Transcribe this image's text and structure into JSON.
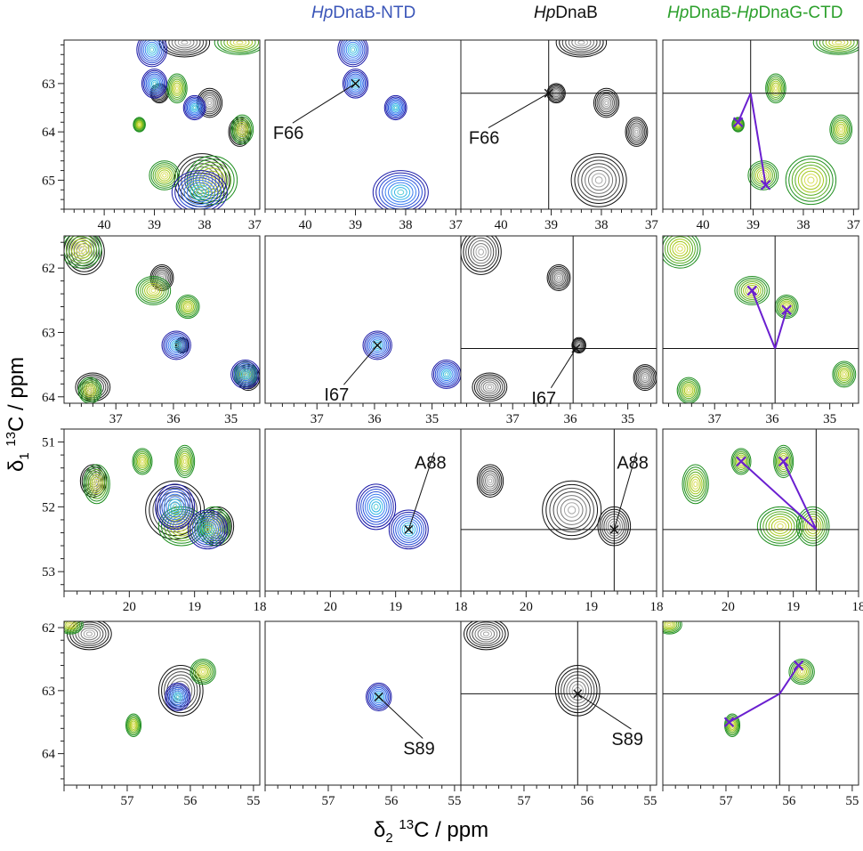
{
  "columns": [
    {
      "key": "overlay",
      "title_italic": "",
      "title_rest": "",
      "color": ""
    },
    {
      "key": "ntd",
      "title_italic": "Hp",
      "title_rest": "DnaB-NTD",
      "color": "#3a55b8"
    },
    {
      "key": "full",
      "title_italic": "Hp",
      "title_rest": "DnaB",
      "color": "#111111"
    },
    {
      "key": "complex",
      "title_italic": "Hp",
      "title_rest": "DnaB-HpDnaG-CTD",
      "title_italic2": "Hp",
      "title_mid": "DnaB-",
      "title_end": "DnaG-CTD",
      "color": "#2ca02c"
    }
  ],
  "axis_labels": {
    "y_delta": "δ",
    "y_sub": "1",
    "y_sup": "13",
    "y_rest": "C / ppm",
    "x_delta": "δ",
    "x_sub": "2",
    "x_sup": "13",
    "x_rest": "C / ppm"
  },
  "colors": {
    "ntd": [
      "#1a1aa8",
      "#2a50d8",
      "#3b7ef0",
      "#35b6e6",
      "#5fd0d6"
    ],
    "full": [
      "#111111",
      "#444444",
      "#777777",
      "#a8a8a8"
    ],
    "complex": [
      "#1f8f1f",
      "#58ad22",
      "#a5c81c",
      "#d9de5a"
    ],
    "marker_purple": "#6a1fd0",
    "marker_black": "#111111"
  },
  "chart_data": [
    {
      "type": "contour",
      "row": 1,
      "xlim": [
        40.8,
        36.9
      ],
      "ylim": [
        62.1,
        65.6
      ],
      "x_ticks": [
        "40",
        "39",
        "38",
        "37"
      ],
      "y_ticks": [
        "63",
        "64",
        "65"
      ],
      "peaks": [
        {
          "set": "ntd",
          "x": 39.0,
          "y": 63.0,
          "sx": 0.25,
          "sy": 0.3
        },
        {
          "set": "ntd",
          "x": 39.05,
          "y": 62.3,
          "sx": 0.3,
          "sy": 0.35
        },
        {
          "set": "ntd",
          "x": 38.2,
          "y": 63.5,
          "sx": 0.22,
          "sy": 0.25
        },
        {
          "set": "ntd",
          "x": 38.1,
          "y": 65.25,
          "sx": 0.55,
          "sy": 0.45
        },
        {
          "set": "full",
          "x": 38.9,
          "y": 63.2,
          "sx": 0.18,
          "sy": 0.2
        },
        {
          "set": "full",
          "x": 38.4,
          "y": 62.15,
          "sx": 0.5,
          "sy": 0.3
        },
        {
          "set": "full",
          "x": 37.9,
          "y": 63.4,
          "sx": 0.25,
          "sy": 0.3
        },
        {
          "set": "full",
          "x": 37.3,
          "y": 64.0,
          "sx": 0.22,
          "sy": 0.3
        },
        {
          "set": "full",
          "x": 38.05,
          "y": 65.0,
          "sx": 0.55,
          "sy": 0.55
        },
        {
          "set": "complex",
          "x": 39.3,
          "y": 63.85,
          "sx": 0.12,
          "sy": 0.15
        },
        {
          "set": "complex",
          "x": 38.55,
          "y": 63.1,
          "sx": 0.2,
          "sy": 0.3
        },
        {
          "set": "complex",
          "x": 37.25,
          "y": 63.95,
          "sx": 0.22,
          "sy": 0.3
        },
        {
          "set": "complex",
          "x": 37.85,
          "y": 65.0,
          "sx": 0.5,
          "sy": 0.5
        },
        {
          "set": "complex",
          "x": 38.8,
          "y": 64.9,
          "sx": 0.3,
          "sy": 0.3
        },
        {
          "set": "complex",
          "x": 37.3,
          "y": 62.15,
          "sx": 0.5,
          "sy": 0.25
        }
      ],
      "labels": [
        {
          "col": "ntd",
          "text": "F66",
          "peak_x": 39.0,
          "peak_y": 63.0,
          "text_x": 40.5,
          "text_y": 64.0
        },
        {
          "col": "full",
          "text": "F66",
          "peak_x": 39.05,
          "peak_y": 63.2,
          "text_x": 40.5,
          "text_y": 64.1
        }
      ],
      "crosshair": {
        "x": 39.05,
        "y": 63.2
      },
      "purple_points": [
        {
          "x": 39.3,
          "y": 63.8
        },
        {
          "x": 38.75,
          "y": 65.1
        }
      ]
    },
    {
      "type": "contour",
      "row": 2,
      "xlim": [
        37.9,
        34.5
      ],
      "ylim": [
        61.5,
        64.1
      ],
      "x_ticks": [
        "37",
        "36",
        "35"
      ],
      "y_ticks": [
        "62",
        "63",
        "64"
      ],
      "peaks": [
        {
          "set": "ntd",
          "x": 35.95,
          "y": 63.2,
          "sx": 0.25,
          "sy": 0.22
        },
        {
          "set": "ntd",
          "x": 34.75,
          "y": 63.65,
          "sx": 0.25,
          "sy": 0.22
        },
        {
          "set": "full",
          "x": 35.85,
          "y": 63.2,
          "sx": 0.12,
          "sy": 0.12
        },
        {
          "set": "full",
          "x": 37.4,
          "y": 63.85,
          "sx": 0.3,
          "sy": 0.22
        },
        {
          "set": "full",
          "x": 34.7,
          "y": 63.7,
          "sx": 0.2,
          "sy": 0.2
        },
        {
          "set": "full",
          "x": 37.55,
          "y": 61.75,
          "sx": 0.35,
          "sy": 0.35
        },
        {
          "set": "full",
          "x": 36.2,
          "y": 62.15,
          "sx": 0.2,
          "sy": 0.2
        },
        {
          "set": "complex",
          "x": 36.35,
          "y": 62.35,
          "sx": 0.3,
          "sy": 0.22
        },
        {
          "set": "complex",
          "x": 35.75,
          "y": 62.6,
          "sx": 0.2,
          "sy": 0.18
        },
        {
          "set": "complex",
          "x": 37.45,
          "y": 63.9,
          "sx": 0.2,
          "sy": 0.2
        },
        {
          "set": "complex",
          "x": 34.75,
          "y": 63.65,
          "sx": 0.2,
          "sy": 0.2
        },
        {
          "set": "complex",
          "x": 37.6,
          "y": 61.7,
          "sx": 0.35,
          "sy": 0.3
        }
      ],
      "labels": [
        {
          "col": "ntd",
          "text": "I67",
          "peak_x": 35.95,
          "peak_y": 63.2,
          "text_x": 36.75,
          "text_y": 63.95
        },
        {
          "col": "full",
          "text": "I67",
          "peak_x": 35.9,
          "peak_y": 63.25,
          "text_x": 36.55,
          "text_y": 64.0
        }
      ],
      "crosshair": {
        "x": 35.95,
        "y": 63.25
      },
      "purple_points": [
        {
          "x": 36.35,
          "y": 62.35
        },
        {
          "x": 35.75,
          "y": 62.65
        }
      ]
    },
    {
      "type": "contour",
      "row": 3,
      "xlim": [
        21.0,
        18.0
      ],
      "ylim": [
        50.8,
        53.3
      ],
      "x_ticks": [
        "20",
        "19",
        "18"
      ],
      "y_ticks": [
        "51",
        "52",
        "53"
      ],
      "peaks": [
        {
          "set": "ntd",
          "x": 19.3,
          "y": 52.0,
          "sx": 0.3,
          "sy": 0.35
        },
        {
          "set": "ntd",
          "x": 18.8,
          "y": 52.35,
          "sx": 0.3,
          "sy": 0.3
        },
        {
          "set": "full",
          "x": 20.55,
          "y": 51.6,
          "sx": 0.2,
          "sy": 0.25
        },
        {
          "set": "full",
          "x": 19.3,
          "y": 52.05,
          "sx": 0.45,
          "sy": 0.45
        },
        {
          "set": "full",
          "x": 18.65,
          "y": 52.3,
          "sx": 0.25,
          "sy": 0.3
        },
        {
          "set": "complex",
          "x": 20.5,
          "y": 51.65,
          "sx": 0.2,
          "sy": 0.3
        },
        {
          "set": "complex",
          "x": 19.8,
          "y": 51.3,
          "sx": 0.15,
          "sy": 0.2
        },
        {
          "set": "complex",
          "x": 19.15,
          "y": 51.3,
          "sx": 0.15,
          "sy": 0.25
        },
        {
          "set": "complex",
          "x": 19.2,
          "y": 52.3,
          "sx": 0.35,
          "sy": 0.3
        },
        {
          "set": "complex",
          "x": 18.7,
          "y": 52.3,
          "sx": 0.25,
          "sy": 0.3
        }
      ],
      "labels": [
        {
          "col": "ntd",
          "text": "A88",
          "peak_x": 18.8,
          "peak_y": 52.35,
          "text_x": 18.6,
          "text_y": 51.3
        },
        {
          "col": "full",
          "text": "A88",
          "peak_x": 18.65,
          "peak_y": 52.35,
          "text_x": 18.5,
          "text_y": 51.3
        }
      ],
      "crosshair": {
        "x": 18.65,
        "y": 52.35
      },
      "purple_points": [
        {
          "x": 19.8,
          "y": 51.3
        },
        {
          "x": 19.15,
          "y": 51.3
        }
      ]
    },
    {
      "type": "contour",
      "row": 4,
      "xlim": [
        58.0,
        54.9
      ],
      "ylim": [
        61.9,
        64.5
      ],
      "x_ticks": [
        "57",
        "56",
        "55"
      ],
      "y_ticks": [
        "62",
        "63",
        "64"
      ],
      "peaks": [
        {
          "set": "ntd",
          "x": 56.2,
          "y": 63.1,
          "sx": 0.2,
          "sy": 0.22
        },
        {
          "set": "full",
          "x": 56.15,
          "y": 63.0,
          "sx": 0.35,
          "sy": 0.4
        },
        {
          "set": "full",
          "x": 57.6,
          "y": 62.1,
          "sx": 0.35,
          "sy": 0.25
        },
        {
          "set": "complex",
          "x": 56.9,
          "y": 63.55,
          "sx": 0.12,
          "sy": 0.18
        },
        {
          "set": "complex",
          "x": 55.8,
          "y": 62.7,
          "sx": 0.2,
          "sy": 0.2
        },
        {
          "set": "complex",
          "x": 57.9,
          "y": 61.95,
          "sx": 0.2,
          "sy": 0.15
        }
      ],
      "labels": [
        {
          "col": "ntd",
          "text": "S89",
          "peak_x": 56.2,
          "peak_y": 63.1,
          "text_x": 55.7,
          "text_y": 63.9
        },
        {
          "col": "full",
          "text": "S89",
          "peak_x": 56.15,
          "peak_y": 63.05,
          "text_x": 55.5,
          "text_y": 63.75
        }
      ],
      "crosshair": {
        "x": 56.15,
        "y": 63.05
      },
      "purple_points": [
        {
          "x": 56.95,
          "y": 63.5
        },
        {
          "x": 55.85,
          "y": 62.6
        }
      ]
    }
  ]
}
